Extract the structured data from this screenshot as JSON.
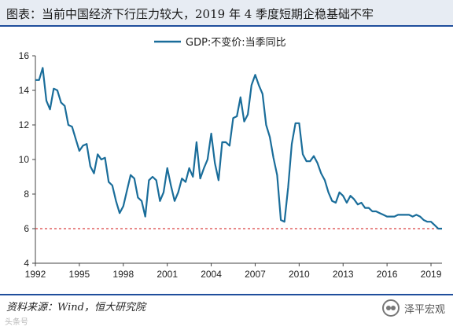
{
  "header": {
    "title": "图表：当前中国经济下行压力较大，2019 年 4 季度短期企稳基础不牢"
  },
  "footer": {
    "source": "资料来源：Wind，恒大研究院",
    "brand": "泽平宏观",
    "watermark": "头条号"
  },
  "colors": {
    "line": "#1a6d9a",
    "reference": "#d94040",
    "axis": "#444444"
  },
  "chart_data": {
    "type": "line",
    "title": "",
    "xlabel": "",
    "ylabel": "",
    "xlim": [
      1992,
      2019.75
    ],
    "ylim": [
      4,
      16
    ],
    "x_ticks": [
      1992,
      1995,
      1998,
      2001,
      2004,
      2007,
      2010,
      2013,
      2016,
      2019
    ],
    "y_ticks": [
      4,
      6,
      8,
      10,
      12,
      14,
      16
    ],
    "grid": false,
    "legend": "top-center",
    "reference_line": {
      "y": 6,
      "style": "dashed"
    },
    "series": [
      {
        "name": "GDP:不变价:当季同比",
        "x": [
          1992.0,
          1992.25,
          1992.5,
          1992.75,
          1993.0,
          1993.25,
          1993.5,
          1993.75,
          1994.0,
          1994.25,
          1994.5,
          1994.75,
          1995.0,
          1995.25,
          1995.5,
          1995.75,
          1996.0,
          1996.25,
          1996.5,
          1996.75,
          1997.0,
          1997.25,
          1997.5,
          1997.75,
          1998.0,
          1998.25,
          1998.5,
          1998.75,
          1999.0,
          1999.25,
          1999.5,
          1999.75,
          2000.0,
          2000.25,
          2000.5,
          2000.75,
          2001.0,
          2001.25,
          2001.5,
          2001.75,
          2002.0,
          2002.25,
          2002.5,
          2002.75,
          2003.0,
          2003.25,
          2003.5,
          2003.75,
          2004.0,
          2004.25,
          2004.5,
          2004.75,
          2005.0,
          2005.25,
          2005.5,
          2005.75,
          2006.0,
          2006.25,
          2006.5,
          2006.75,
          2007.0,
          2007.25,
          2007.5,
          2007.75,
          2008.0,
          2008.25,
          2008.5,
          2008.75,
          2009.0,
          2009.25,
          2009.5,
          2009.75,
          2010.0,
          2010.25,
          2010.5,
          2010.75,
          2011.0,
          2011.25,
          2011.5,
          2011.75,
          2012.0,
          2012.25,
          2012.5,
          2012.75,
          2013.0,
          2013.25,
          2013.5,
          2013.75,
          2014.0,
          2014.25,
          2014.5,
          2014.75,
          2015.0,
          2015.25,
          2015.5,
          2015.75,
          2016.0,
          2016.25,
          2016.5,
          2016.75,
          2017.0,
          2017.25,
          2017.5,
          2017.75,
          2018.0,
          2018.25,
          2018.5,
          2018.75,
          2019.0,
          2019.25,
          2019.5,
          2019.75
        ],
        "y": [
          14.6,
          14.6,
          15.3,
          13.4,
          12.9,
          14.1,
          14.0,
          13.3,
          13.1,
          12.0,
          11.9,
          11.2,
          10.5,
          10.8,
          10.9,
          9.6,
          9.2,
          10.3,
          10.0,
          10.1,
          8.7,
          8.5,
          7.6,
          6.9,
          7.3,
          8.2,
          9.1,
          8.9,
          7.8,
          7.6,
          6.7,
          8.8,
          9.0,
          8.8,
          7.6,
          8.1,
          9.5,
          8.5,
          7.6,
          8.1,
          8.9,
          8.7,
          9.5,
          9.0,
          11.0,
          8.9,
          9.5,
          10.0,
          11.5,
          9.8,
          8.8,
          11.0,
          11.0,
          10.8,
          12.4,
          12.5,
          13.6,
          12.2,
          12.6,
          14.3,
          14.9,
          14.3,
          13.8,
          12.0,
          11.3,
          10.1,
          9.1,
          6.5,
          6.4,
          8.4,
          10.9,
          12.1,
          12.1,
          10.3,
          9.9,
          9.9,
          10.2,
          9.8,
          9.2,
          8.8,
          8.1,
          7.6,
          7.5,
          8.1,
          7.9,
          7.5,
          7.9,
          7.7,
          7.4,
          7.5,
          7.2,
          7.2,
          7.0,
          7.0,
          6.9,
          6.8,
          6.7,
          6.7,
          6.7,
          6.8,
          6.8,
          6.8,
          6.8,
          6.7,
          6.8,
          6.7,
          6.5,
          6.4,
          6.4,
          6.2,
          6.0,
          6.0
        ]
      }
    ]
  }
}
